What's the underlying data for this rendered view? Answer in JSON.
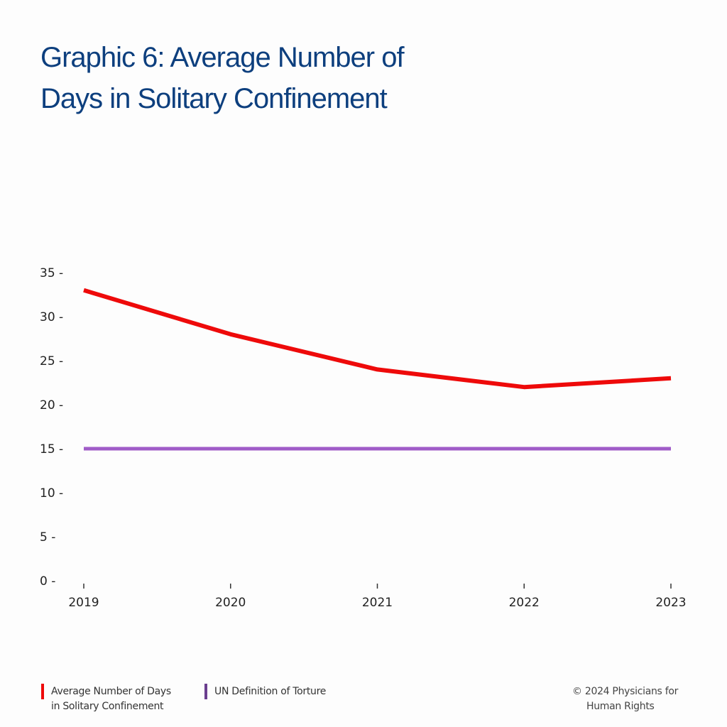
{
  "chart_data": {
    "type": "line",
    "title": "Graphic 6: Average Number of Days in Solitary Confinement",
    "xlabel": "",
    "ylabel": "",
    "x": [
      "2019",
      "2020",
      "2021",
      "2022",
      "2023"
    ],
    "ylim": [
      0,
      35
    ],
    "yticks": [
      0,
      5,
      10,
      15,
      20,
      25,
      30,
      35
    ],
    "grid": false,
    "legend_position": "bottom-left",
    "series": [
      {
        "name": "Average Number of Days in Solitary Confinement",
        "values": [
          33,
          28,
          24,
          22,
          23
        ],
        "color": "#ee0a0a"
      },
      {
        "name": "UN Definition of Torture",
        "values": [
          15,
          15,
          15,
          15,
          15
        ],
        "color": "#a05cc8",
        "legend_color": "#6b3f8f"
      }
    ]
  },
  "legend": {
    "item1_line1": "Average Number of Days",
    "item1_line2": "in Solitary Confinement",
    "item2": "UN Definition of Torture"
  },
  "credit": {
    "line1": "© 2024 Physicians for",
    "line2": "Human Rights"
  }
}
